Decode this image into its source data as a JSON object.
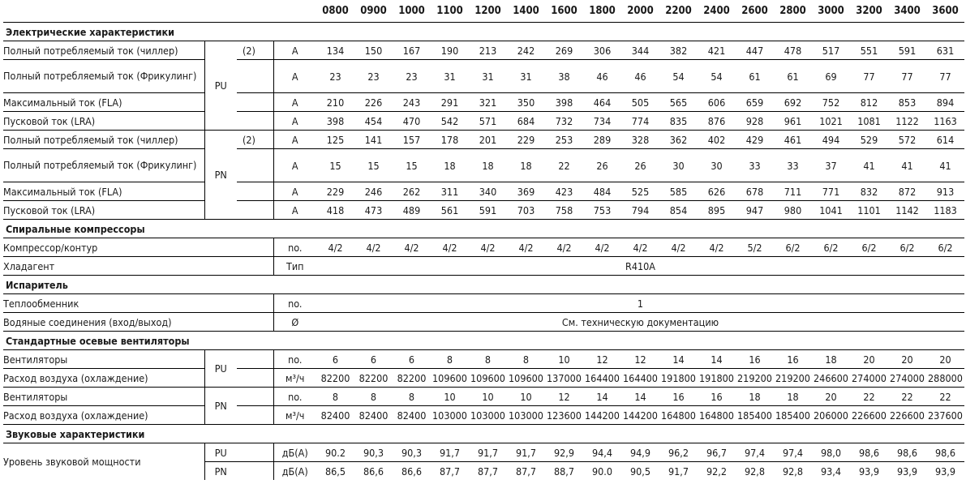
{
  "header": {
    "models": [
      "0800",
      "0900",
      "1000",
      "1100",
      "1200",
      "1400",
      "1600",
      "1800",
      "2000",
      "2200",
      "2400",
      "2600",
      "2800",
      "3000",
      "3200",
      "3400",
      "3600"
    ]
  },
  "electrical": {
    "title": "Электрические характеристики",
    "PU": {
      "model": "PU",
      "rows": [
        {
          "label": "Полный потребляемый ток (чиллер)",
          "note": "(2)",
          "unit": "A",
          "values": [
            "134",
            "150",
            "167",
            "190",
            "213",
            "242",
            "269",
            "306",
            "344",
            "382",
            "421",
            "447",
            "478",
            "517",
            "551",
            "591",
            "631"
          ]
        },
        {
          "label": "Полный потребляемый ток (Фрикулинг)",
          "note": "",
          "unit": "A",
          "values": [
            "23",
            "23",
            "23",
            "31",
            "31",
            "31",
            "38",
            "46",
            "46",
            "54",
            "54",
            "61",
            "61",
            "69",
            "77",
            "77",
            "77"
          ]
        },
        {
          "label": "Максимальный ток (FLA)",
          "note": "",
          "unit": "A",
          "values": [
            "210",
            "226",
            "243",
            "291",
            "321",
            "350",
            "398",
            "464",
            "505",
            "565",
            "606",
            "659",
            "692",
            "752",
            "812",
            "853",
            "894"
          ]
        },
        {
          "label": "Пусковой ток (LRA)",
          "note": "",
          "unit": "A",
          "values": [
            "398",
            "454",
            "470",
            "542",
            "571",
            "684",
            "732",
            "734",
            "774",
            "835",
            "876",
            "928",
            "961",
            "1021",
            "1081",
            "1122",
            "1163"
          ]
        }
      ]
    },
    "PN": {
      "model": "PN",
      "rows": [
        {
          "label": "Полный потребляемый ток (чиллер)",
          "note": "(2)",
          "unit": "A",
          "values": [
            "125",
            "141",
            "157",
            "178",
            "201",
            "229",
            "253",
            "289",
            "328",
            "362",
            "402",
            "429",
            "461",
            "494",
            "529",
            "572",
            "614"
          ]
        },
        {
          "label": "Полный потребляемый ток (Фрикулинг)",
          "note": "",
          "unit": "A",
          "values": [
            "15",
            "15",
            "15",
            "18",
            "18",
            "18",
            "22",
            "26",
            "26",
            "30",
            "30",
            "33",
            "33",
            "37",
            "41",
            "41",
            "41"
          ]
        },
        {
          "label": "Максимальный ток (FLA)",
          "note": "",
          "unit": "A",
          "values": [
            "229",
            "246",
            "262",
            "311",
            "340",
            "369",
            "423",
            "484",
            "525",
            "585",
            "626",
            "678",
            "711",
            "771",
            "832",
            "872",
            "913"
          ]
        },
        {
          "label": "Пусковой ток (LRA)",
          "note": "",
          "unit": "A",
          "values": [
            "418",
            "473",
            "489",
            "561",
            "591",
            "703",
            "758",
            "753",
            "794",
            "854",
            "895",
            "947",
            "980",
            "1041",
            "1101",
            "1142",
            "1183"
          ]
        }
      ]
    }
  },
  "compressors": {
    "title": "Спиральные компрессоры",
    "rows": [
      {
        "label": "Компрессор/контур",
        "unit": "no.",
        "values": [
          "4/2",
          "4/2",
          "4/2",
          "4/2",
          "4/2",
          "4/2",
          "4/2",
          "4/2",
          "4/2",
          "4/2",
          "4/2",
          "5/2",
          "6/2",
          "6/2",
          "6/2",
          "6/2",
          "6/2"
        ]
      }
    ],
    "refrigerant": {
      "label": "Хладагент",
      "unit": "Тип",
      "value": "R410A"
    }
  },
  "evaporator": {
    "title": "Испаритель",
    "exchanger": {
      "label": "Теплообменник",
      "unit": "no.",
      "value": "1"
    },
    "connections": {
      "label": "Водяные соединения (вход/выход)",
      "unit": "Ø",
      "value": "См. техническую документацию"
    }
  },
  "fans": {
    "title": "Стандартные осевые вентиляторы",
    "PU": {
      "model": "PU",
      "rows": [
        {
          "label": "Вентиляторы",
          "unit": "no.",
          "values": [
            "6",
            "6",
            "6",
            "8",
            "8",
            "8",
            "10",
            "12",
            "12",
            "14",
            "14",
            "16",
            "16",
            "18",
            "20",
            "20",
            "20"
          ]
        },
        {
          "label": "Расход воздуха (охлаждение)",
          "unit": "м³/ч",
          "values": [
            "82200",
            "82200",
            "82200",
            "109600",
            "109600",
            "109600",
            "137000",
            "164400",
            "164400",
            "191800",
            "191800",
            "219200",
            "219200",
            "246600",
            "274000",
            "274000",
            "288000"
          ]
        }
      ]
    },
    "PN": {
      "model": "PN",
      "rows": [
        {
          "label": "Вентиляторы",
          "unit": "no.",
          "values": [
            "8",
            "8",
            "8",
            "10",
            "10",
            "10",
            "12",
            "14",
            "14",
            "16",
            "16",
            "18",
            "18",
            "20",
            "22",
            "22",
            "22"
          ]
        },
        {
          "label": "Расход воздуха (охлаждение)",
          "unit": "м³/ч",
          "values": [
            "82400",
            "82400",
            "82400",
            "103000",
            "103000",
            "103000",
            "123600",
            "144200",
            "144200",
            "164800",
            "164800",
            "185400",
            "185400",
            "206000",
            "226600",
            "226600",
            "237600"
          ]
        }
      ]
    }
  },
  "sound": {
    "title": "Звуковые характеристики",
    "label": "Уровень звуковой мощности",
    "rows": [
      {
        "model": "PU",
        "unit": "дБ(A)",
        "values": [
          "90.2",
          "90,3",
          "90,3",
          "91,7",
          "91,7",
          "91,7",
          "92,9",
          "94,4",
          "94,9",
          "96,2",
          "96,7",
          "97,4",
          "97,4",
          "98,0",
          "98,6",
          "98,6",
          "98,6"
        ]
      },
      {
        "model": "PN",
        "unit": "дБ(A)",
        "values": [
          "86,5",
          "86,6",
          "86,6",
          "87,7",
          "87,7",
          "87,7",
          "88,7",
          "90.0",
          "90,5",
          "91,7",
          "92,2",
          "92,8",
          "92,8",
          "93,4",
          "93,9",
          "93,9",
          "93,9"
        ]
      }
    ]
  }
}
